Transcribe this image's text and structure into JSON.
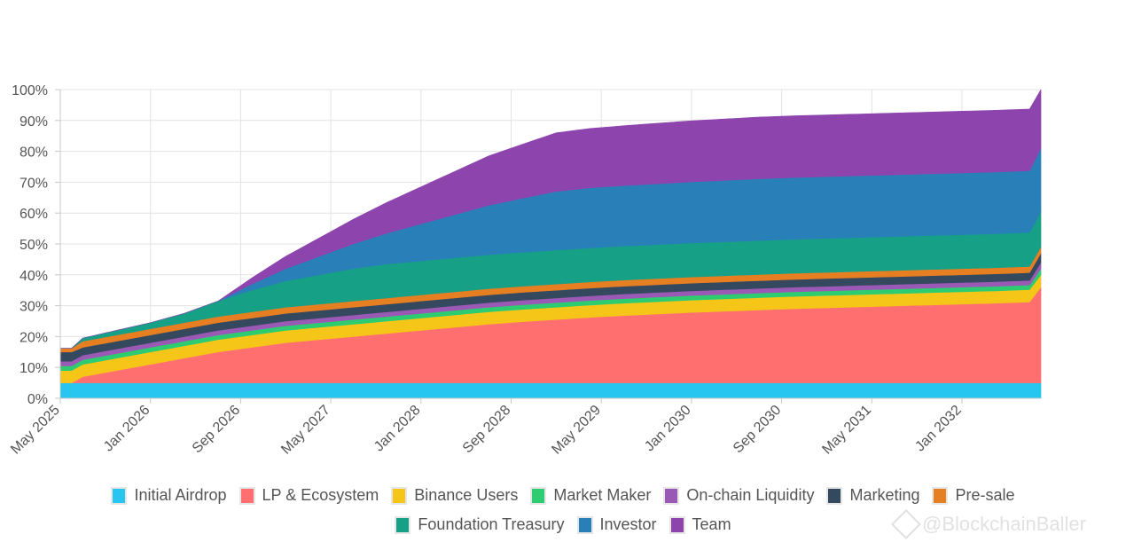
{
  "chart_data": {
    "type": "area",
    "stacked": true,
    "ylim": [
      0,
      100
    ],
    "y_ticks": [
      "0%",
      "10%",
      "20%",
      "30%",
      "40%",
      "50%",
      "60%",
      "70%",
      "80%",
      "90%",
      "100%"
    ],
    "x_tick_labels": [
      "May 2025",
      "Jan 2026",
      "Sep 2026",
      "May 2027",
      "Jan 2028",
      "Sep 2028",
      "May 2029",
      "Jan 2030",
      "Sep 2030",
      "May 2031",
      "Jan 2032"
    ],
    "x_start": "May 2025",
    "x_end": "Aug 2032",
    "grid": true,
    "legend_position": "bottom",
    "series": [
      {
        "name": "Initial Airdrop",
        "color": "#26c6f0",
        "points": [
          [
            "2025-05",
            5
          ],
          [
            "2032-08",
            5
          ]
        ]
      },
      {
        "name": "LP & Ecosystem",
        "color": "#ff6f6f",
        "points": [
          [
            "2025-05",
            0
          ],
          [
            "2025-06",
            0
          ],
          [
            "2025-07",
            2
          ],
          [
            "2025-10",
            4
          ],
          [
            "2026-01",
            6
          ],
          [
            "2026-04",
            8
          ],
          [
            "2026-07",
            10
          ],
          [
            "2026-10",
            11.5
          ],
          [
            "2027-01",
            13
          ],
          [
            "2027-04",
            14
          ],
          [
            "2027-07",
            15
          ],
          [
            "2027-10",
            16
          ],
          [
            "2028-01",
            17
          ],
          [
            "2028-04",
            18
          ],
          [
            "2028-07",
            19
          ],
          [
            "2028-10",
            19.8
          ],
          [
            "2029-01",
            20.5
          ],
          [
            "2029-04",
            21.2
          ],
          [
            "2029-07",
            21.8
          ],
          [
            "2029-10",
            22.3
          ],
          [
            "2030-01",
            22.8
          ],
          [
            "2030-04",
            23.2
          ],
          [
            "2030-07",
            23.6
          ],
          [
            "2030-10",
            24
          ],
          [
            "2031-01",
            24.3
          ],
          [
            "2031-04",
            24.6
          ],
          [
            "2031-07",
            24.9
          ],
          [
            "2031-10",
            25.2
          ],
          [
            "2032-01",
            25.5
          ],
          [
            "2032-04",
            25.8
          ],
          [
            "2032-07",
            26.2
          ],
          [
            "2032-08",
            31
          ]
        ]
      },
      {
        "name": "Binance Users",
        "color": "#f5c518",
        "points": [
          [
            "2025-05",
            4
          ],
          [
            "2025-06",
            4
          ],
          [
            "2025-07",
            4
          ],
          [
            "2032-07",
            4
          ],
          [
            "2032-08",
            4
          ]
        ]
      },
      {
        "name": "Market Maker",
        "color": "#2ecc71",
        "points": [
          [
            "2025-05",
            1.5
          ],
          [
            "2032-07",
            1.5
          ],
          [
            "2032-08",
            2
          ]
        ]
      },
      {
        "name": "On-chain Liquidity",
        "color": "#9b59b6",
        "points": [
          [
            "2025-05",
            1.5
          ],
          [
            "2032-07",
            1.5
          ],
          [
            "2032-08",
            2
          ]
        ]
      },
      {
        "name": "Marketing",
        "color": "#34495e",
        "points": [
          [
            "2025-05",
            3
          ],
          [
            "2025-06",
            3
          ],
          [
            "2025-07",
            2.5
          ],
          [
            "2026-01",
            2.5
          ],
          [
            "2032-07",
            2.5
          ],
          [
            "2032-08",
            3
          ]
        ]
      },
      {
        "name": "Pre-sale",
        "color": "#e67e22",
        "points": [
          [
            "2025-05",
            1.2
          ],
          [
            "2025-06",
            1.2
          ],
          [
            "2025-07",
            2
          ],
          [
            "2032-07",
            2
          ],
          [
            "2032-08",
            2
          ]
        ]
      },
      {
        "name": "Foundation Treasury",
        "color": "#16a085",
        "points": [
          [
            "2025-05",
            0
          ],
          [
            "2025-06",
            0
          ],
          [
            "2025-07",
            1
          ],
          [
            "2025-10",
            1.5
          ],
          [
            "2026-01",
            2
          ],
          [
            "2026-04",
            3
          ],
          [
            "2026-07",
            5
          ],
          [
            "2026-10",
            7
          ],
          [
            "2027-01",
            8.5
          ],
          [
            "2027-04",
            9.5
          ],
          [
            "2027-07",
            10.5
          ],
          [
            "2027-10",
            11
          ],
          [
            "2028-01",
            11
          ],
          [
            "2028-04",
            11
          ],
          [
            "2028-07",
            11
          ],
          [
            "2028-10",
            11
          ],
          [
            "2029-01",
            11
          ],
          [
            "2029-04",
            11
          ],
          [
            "2029-07",
            11
          ],
          [
            "2029-10",
            11
          ],
          [
            "2030-01",
            11
          ],
          [
            "2030-04",
            11
          ],
          [
            "2030-07",
            11
          ],
          [
            "2030-10",
            11
          ],
          [
            "2031-01",
            11
          ],
          [
            "2031-04",
            11
          ],
          [
            "2031-07",
            11
          ],
          [
            "2031-10",
            11
          ],
          [
            "2032-01",
            11
          ],
          [
            "2032-04",
            11
          ],
          [
            "2032-07",
            11
          ],
          [
            "2032-08",
            11.5
          ]
        ]
      },
      {
        "name": "Investor",
        "color": "#2980b9",
        "points": [
          [
            "2025-05",
            0
          ],
          [
            "2026-07",
            0
          ],
          [
            "2026-10",
            2
          ],
          [
            "2027-01",
            4
          ],
          [
            "2027-04",
            6
          ],
          [
            "2027-07",
            8
          ],
          [
            "2027-10",
            10
          ],
          [
            "2028-01",
            12
          ],
          [
            "2028-04",
            14
          ],
          [
            "2028-07",
            16
          ],
          [
            "2028-10",
            17.5
          ],
          [
            "2029-01",
            19
          ],
          [
            "2029-04",
            19.5
          ],
          [
            "2029-07",
            19.6
          ],
          [
            "2029-10",
            19.7
          ],
          [
            "2030-01",
            19.8
          ],
          [
            "2030-04",
            19.9
          ],
          [
            "2030-07",
            20
          ],
          [
            "2030-10",
            20
          ],
          [
            "2031-01",
            20
          ],
          [
            "2031-04",
            20
          ],
          [
            "2031-07",
            20
          ],
          [
            "2031-10",
            20
          ],
          [
            "2032-01",
            20
          ],
          [
            "2032-04",
            20
          ],
          [
            "2032-07",
            20
          ],
          [
            "2032-08",
            20.5
          ]
        ]
      },
      {
        "name": "Team",
        "color": "#8e44ad",
        "points": [
          [
            "2025-05",
            0
          ],
          [
            "2026-07",
            0
          ],
          [
            "2026-10",
            2
          ],
          [
            "2027-01",
            4
          ],
          [
            "2027-04",
            6
          ],
          [
            "2027-07",
            8
          ],
          [
            "2027-10",
            10
          ],
          [
            "2028-01",
            12
          ],
          [
            "2028-04",
            14
          ],
          [
            "2028-07",
            16
          ],
          [
            "2028-10",
            17.5
          ],
          [
            "2029-01",
            19
          ],
          [
            "2029-04",
            19.2
          ],
          [
            "2029-07",
            19.4
          ],
          [
            "2029-10",
            19.6
          ],
          [
            "2030-01",
            19.8
          ],
          [
            "2030-04",
            19.9
          ],
          [
            "2030-07",
            20
          ],
          [
            "2030-10",
            20
          ],
          [
            "2031-01",
            20
          ],
          [
            "2031-04",
            20
          ],
          [
            "2031-07",
            20
          ],
          [
            "2031-10",
            20
          ],
          [
            "2032-01",
            20
          ],
          [
            "2032-04",
            20
          ],
          [
            "2032-07",
            20
          ],
          [
            "2032-08",
            19
          ]
        ]
      }
    ]
  },
  "watermark": {
    "text": "@BlockchainBaller",
    "icon": "binance-logo-icon"
  }
}
